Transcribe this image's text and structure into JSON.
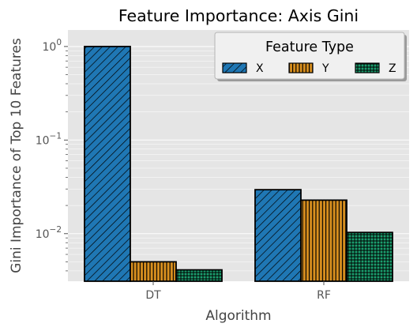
{
  "chart_data": {
    "type": "bar",
    "title": "Feature Importance: Axis Gini",
    "xlabel": "Algorithm",
    "ylabel": "Gini Importance of Top 10 Features",
    "yscale": "log",
    "ylim": [
      0.0031,
      1.5
    ],
    "yticks": [
      {
        "value": 1,
        "base": "10",
        "exp": "0"
      },
      {
        "value": 0.1,
        "base": "10",
        "exp": "−1"
      },
      {
        "value": 0.01,
        "base": "10",
        "exp": "−2"
      }
    ],
    "grid": true,
    "categories": [
      "DT",
      "RF"
    ],
    "legend": {
      "title": "Feature Type",
      "placement": "top-right",
      "ncol": 3
    },
    "series": [
      {
        "name": "X",
        "values": [
          1.0,
          0.0295
        ],
        "color": "#1f77b4",
        "hatch": "diagonal"
      },
      {
        "name": "Y",
        "values": [
          0.005,
          0.0228
        ],
        "color": "#d9901f",
        "hatch": "vertical"
      },
      {
        "name": "Z",
        "values": [
          0.0041,
          0.0103
        ],
        "color": "#1b9e6e",
        "hatch": "grid"
      }
    ]
  }
}
